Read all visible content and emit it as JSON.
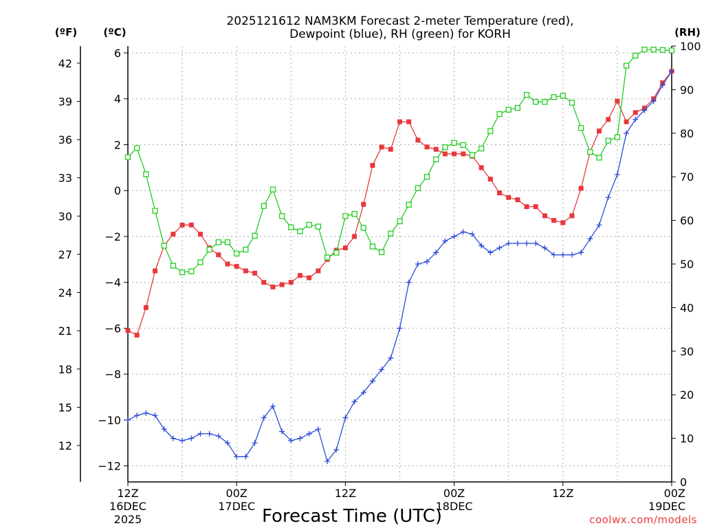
{
  "title_line1": "2025121612 NAM3KM Forecast 2-meter Temperature (red),",
  "title_line2": "Dewpoint (blue), RH (green) for KORH",
  "unit_f": "(ºF)",
  "unit_c": "(ºC)",
  "unit_rh": "(RH)",
  "xlabel": "Forecast Time (UTC)",
  "watermark": "coolwx.com/models",
  "colors": {
    "temp": "#e8383d",
    "dewpoint": "#2a4bd7",
    "rh": "#22cc22",
    "grid": "#aaaaaa"
  },
  "chart_data": {
    "type": "line",
    "title": "2025121612 NAM3KM Forecast 2-meter Temperature (red), Dewpoint (blue), RH (green) for KORH",
    "xlabel": "Forecast Time (UTC)",
    "x_hours": [
      0,
      1,
      2,
      3,
      4,
      5,
      6,
      7,
      8,
      9,
      10,
      11,
      12,
      13,
      14,
      15,
      16,
      17,
      18,
      19,
      20,
      21,
      22,
      23,
      24,
      25,
      26,
      27,
      28,
      29,
      30,
      31,
      32,
      33,
      34,
      35,
      36,
      37,
      38,
      39,
      40,
      41,
      42,
      43,
      44,
      45,
      46,
      47,
      48,
      49,
      50,
      51,
      52,
      53,
      54,
      55,
      56,
      57,
      58,
      59,
      60
    ],
    "x_range": [
      0,
      60
    ],
    "x_ticks": [
      {
        "hour": 0,
        "label1": "12Z",
        "label2": "16DEC",
        "label3": "2025"
      },
      {
        "hour": 12,
        "label1": "00Z",
        "label2": "17DEC",
        "label3": ""
      },
      {
        "hour": 24,
        "label1": "12Z",
        "label2": "",
        "label3": ""
      },
      {
        "hour": 36,
        "label1": "00Z",
        "label2": "18DEC",
        "label3": ""
      },
      {
        "hour": 48,
        "label1": "12Z",
        "label2": "",
        "label3": ""
      },
      {
        "hour": 60,
        "label1": "00Z",
        "label2": "19DEC",
        "label3": ""
      }
    ],
    "y_left_c": {
      "label": "(ºC)",
      "range": [
        -12.7,
        6.3
      ],
      "ticks": [
        6,
        4,
        2,
        0,
        -2,
        -4,
        -6,
        -8,
        -10,
        -12
      ],
      "tick_labels": [
        "6",
        "4",
        "2",
        "0",
        "−2",
        "−4",
        "−6",
        "−8",
        "−10",
        "−12"
      ]
    },
    "y_left_f": {
      "label": "(ºF)",
      "ticks": [
        42,
        39,
        36,
        33,
        30,
        27,
        24,
        21,
        18,
        15,
        12
      ],
      "tick_labels": [
        "42",
        "39",
        "36",
        "33",
        "30",
        "27",
        "24",
        "21",
        "18",
        "15",
        "12"
      ]
    },
    "y_right_rh": {
      "label": "(RH)",
      "range": [
        0,
        100
      ],
      "ticks": [
        100,
        90,
        80,
        70,
        60,
        50,
        40,
        30,
        20,
        10,
        0
      ],
      "tick_labels": [
        "100",
        "90",
        "80",
        "70",
        "60",
        "50",
        "40",
        "30",
        "20",
        "10",
        "0"
      ]
    },
    "series": [
      {
        "name": "Temperature",
        "units": "C",
        "color": "#e8383d",
        "marker": "filled-square",
        "values": [
          -6.1,
          -6.3,
          -5.1,
          -3.5,
          -2.4,
          -1.9,
          -1.5,
          -1.5,
          -1.9,
          -2.5,
          -2.8,
          -3.2,
          -3.3,
          -3.5,
          -3.6,
          -4.0,
          -4.2,
          -4.1,
          -4.0,
          -3.7,
          -3.8,
          -3.5,
          -3.0,
          -2.6,
          -2.5,
          -2.0,
          -0.6,
          1.1,
          1.9,
          1.8,
          3.0,
          3.0,
          2.2,
          1.9,
          1.8,
          1.6,
          1.6,
          1.6,
          1.5,
          1.0,
          0.5,
          -0.1,
          -0.3,
          -0.4,
          -0.7,
          -0.7,
          -1.1,
          -1.3,
          -1.4,
          -1.1,
          0.1,
          1.7,
          2.6,
          3.1,
          3.9,
          3.0,
          3.4,
          3.6,
          4.0,
          4.7,
          5.2
        ]
      },
      {
        "name": "Dewpoint",
        "units": "C",
        "color": "#2a4bd7",
        "marker": "plus",
        "values": [
          -10.0,
          -9.8,
          -9.7,
          -9.8,
          -10.4,
          -10.8,
          -10.9,
          -10.8,
          -10.6,
          -10.6,
          -10.7,
          -11.0,
          -11.6,
          -11.6,
          -11.0,
          -9.9,
          -9.4,
          -10.5,
          -10.9,
          -10.8,
          -10.6,
          -10.4,
          -11.8,
          -11.3,
          -9.9,
          -9.2,
          -8.8,
          -8.3,
          -7.8,
          -7.3,
          -6.0,
          -4.0,
          -3.2,
          -3.1,
          -2.7,
          -2.2,
          -2.0,
          -1.8,
          -1.9,
          -2.4,
          -2.7,
          -2.5,
          -2.3,
          -2.3,
          -2.3,
          -2.3,
          -2.5,
          -2.8,
          -2.8,
          -2.8,
          -2.7,
          -2.1,
          -1.5,
          -0.3,
          0.7,
          2.5,
          3.1,
          3.5,
          3.9,
          4.6,
          5.2
        ]
      },
      {
        "name": "RH",
        "units": "%",
        "color": "#22cc22",
        "marker": "open-square",
        "values": [
          74.5,
          76.6,
          70.6,
          62.2,
          54.2,
          49.6,
          48.1,
          48.3,
          50.4,
          53.3,
          55.0,
          55.0,
          52.4,
          53.3,
          56.5,
          63.3,
          67.1,
          61.0,
          58.4,
          57.5,
          59.0,
          58.6,
          51.5,
          52.6,
          61.0,
          61.5,
          58.3,
          54.0,
          52.7,
          57.0,
          59.8,
          63.6,
          67.4,
          70.0,
          74.0,
          76.8,
          77.8,
          77.3,
          75.0,
          76.5,
          80.5,
          84.4,
          85.4,
          85.8,
          88.8,
          87.2,
          87.2,
          88.3,
          88.6,
          87.0,
          81.2,
          75.7,
          74.4,
          78.3,
          79.1,
          95.5,
          97.8,
          99.2,
          99.2,
          99.1,
          99.0
        ]
      }
    ],
    "grid": true
  }
}
